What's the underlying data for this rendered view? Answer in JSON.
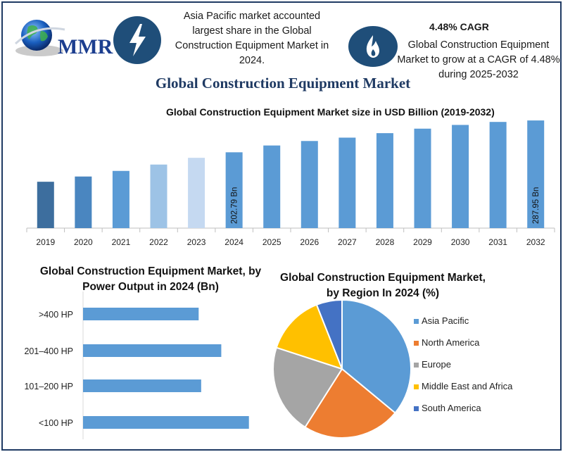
{
  "header": {
    "logo_label": "MMR",
    "left_info": "Asia Pacific market accounted largest share in the Global Construction Equipment Market in 2024.",
    "cagr_label": "4.48% CAGR",
    "right_info": "Global Construction Equipment Market to grow at a CAGR of 4.48% during 2025-2032",
    "icons": [
      "lightning-icon",
      "flame-icon",
      "globe-icon"
    ],
    "accent_color": "#1f3a63"
  },
  "main_title": "Global Construction Equipment Market",
  "chart_data": [
    {
      "type": "bar",
      "title": "Global Construction Equipment Market size in USD Billion (2019-2032)",
      "categories": [
        "2019",
        "2020",
        "2021",
        "2022",
        "2023",
        "2024",
        "2025",
        "2026",
        "2027",
        "2028",
        "2029",
        "2030",
        "2031",
        "2032"
      ],
      "values": [
        124,
        138,
        153,
        170,
        188,
        202.79,
        221,
        233,
        242,
        254,
        266,
        276,
        284,
        287.95
      ],
      "data_labels": [
        {
          "category": "2024",
          "text": "202.79 Bn"
        },
        {
          "category": "2032",
          "text": "287.95 Bn"
        }
      ],
      "bar_colors": [
        "#3d6e9e",
        "#4a86c0",
        "#5b9bd5",
        "#9dc3e6",
        "#c5d9f1",
        "#5b9bd5",
        "#5b9bd5",
        "#5b9bd5",
        "#5b9bd5",
        "#5b9bd5",
        "#5b9bd5",
        "#5b9bd5",
        "#5b9bd5",
        "#5b9bd5"
      ],
      "ylim": [
        0,
        290
      ],
      "grid": false,
      "xlabel": "",
      "ylabel": ""
    },
    {
      "type": "bar",
      "orientation": "horizontal",
      "title": "Global Construction Equipment Market, by Power Output in 2024 (Bn)",
      "categories": [
        ">400 HP",
        "201–400 HP",
        "101–200 HP",
        "<100 HP"
      ],
      "values": [
        46,
        55,
        47,
        66
      ],
      "xlim": [
        0,
        70
      ],
      "bar_color": "#5b9bd5",
      "grid": false
    },
    {
      "type": "pie",
      "title": "Global Construction Equipment Market, by Region In 2024 (%)",
      "labels": [
        "Asia Pacific",
        "North America",
        "Europe",
        "Middle East and Africa",
        "South America"
      ],
      "values": [
        36,
        23,
        21,
        14,
        6
      ],
      "colors": [
        "#5b9bd5",
        "#ed7d31",
        "#a5a5a5",
        "#ffc000",
        "#4472c4"
      ],
      "legend": "right"
    }
  ]
}
